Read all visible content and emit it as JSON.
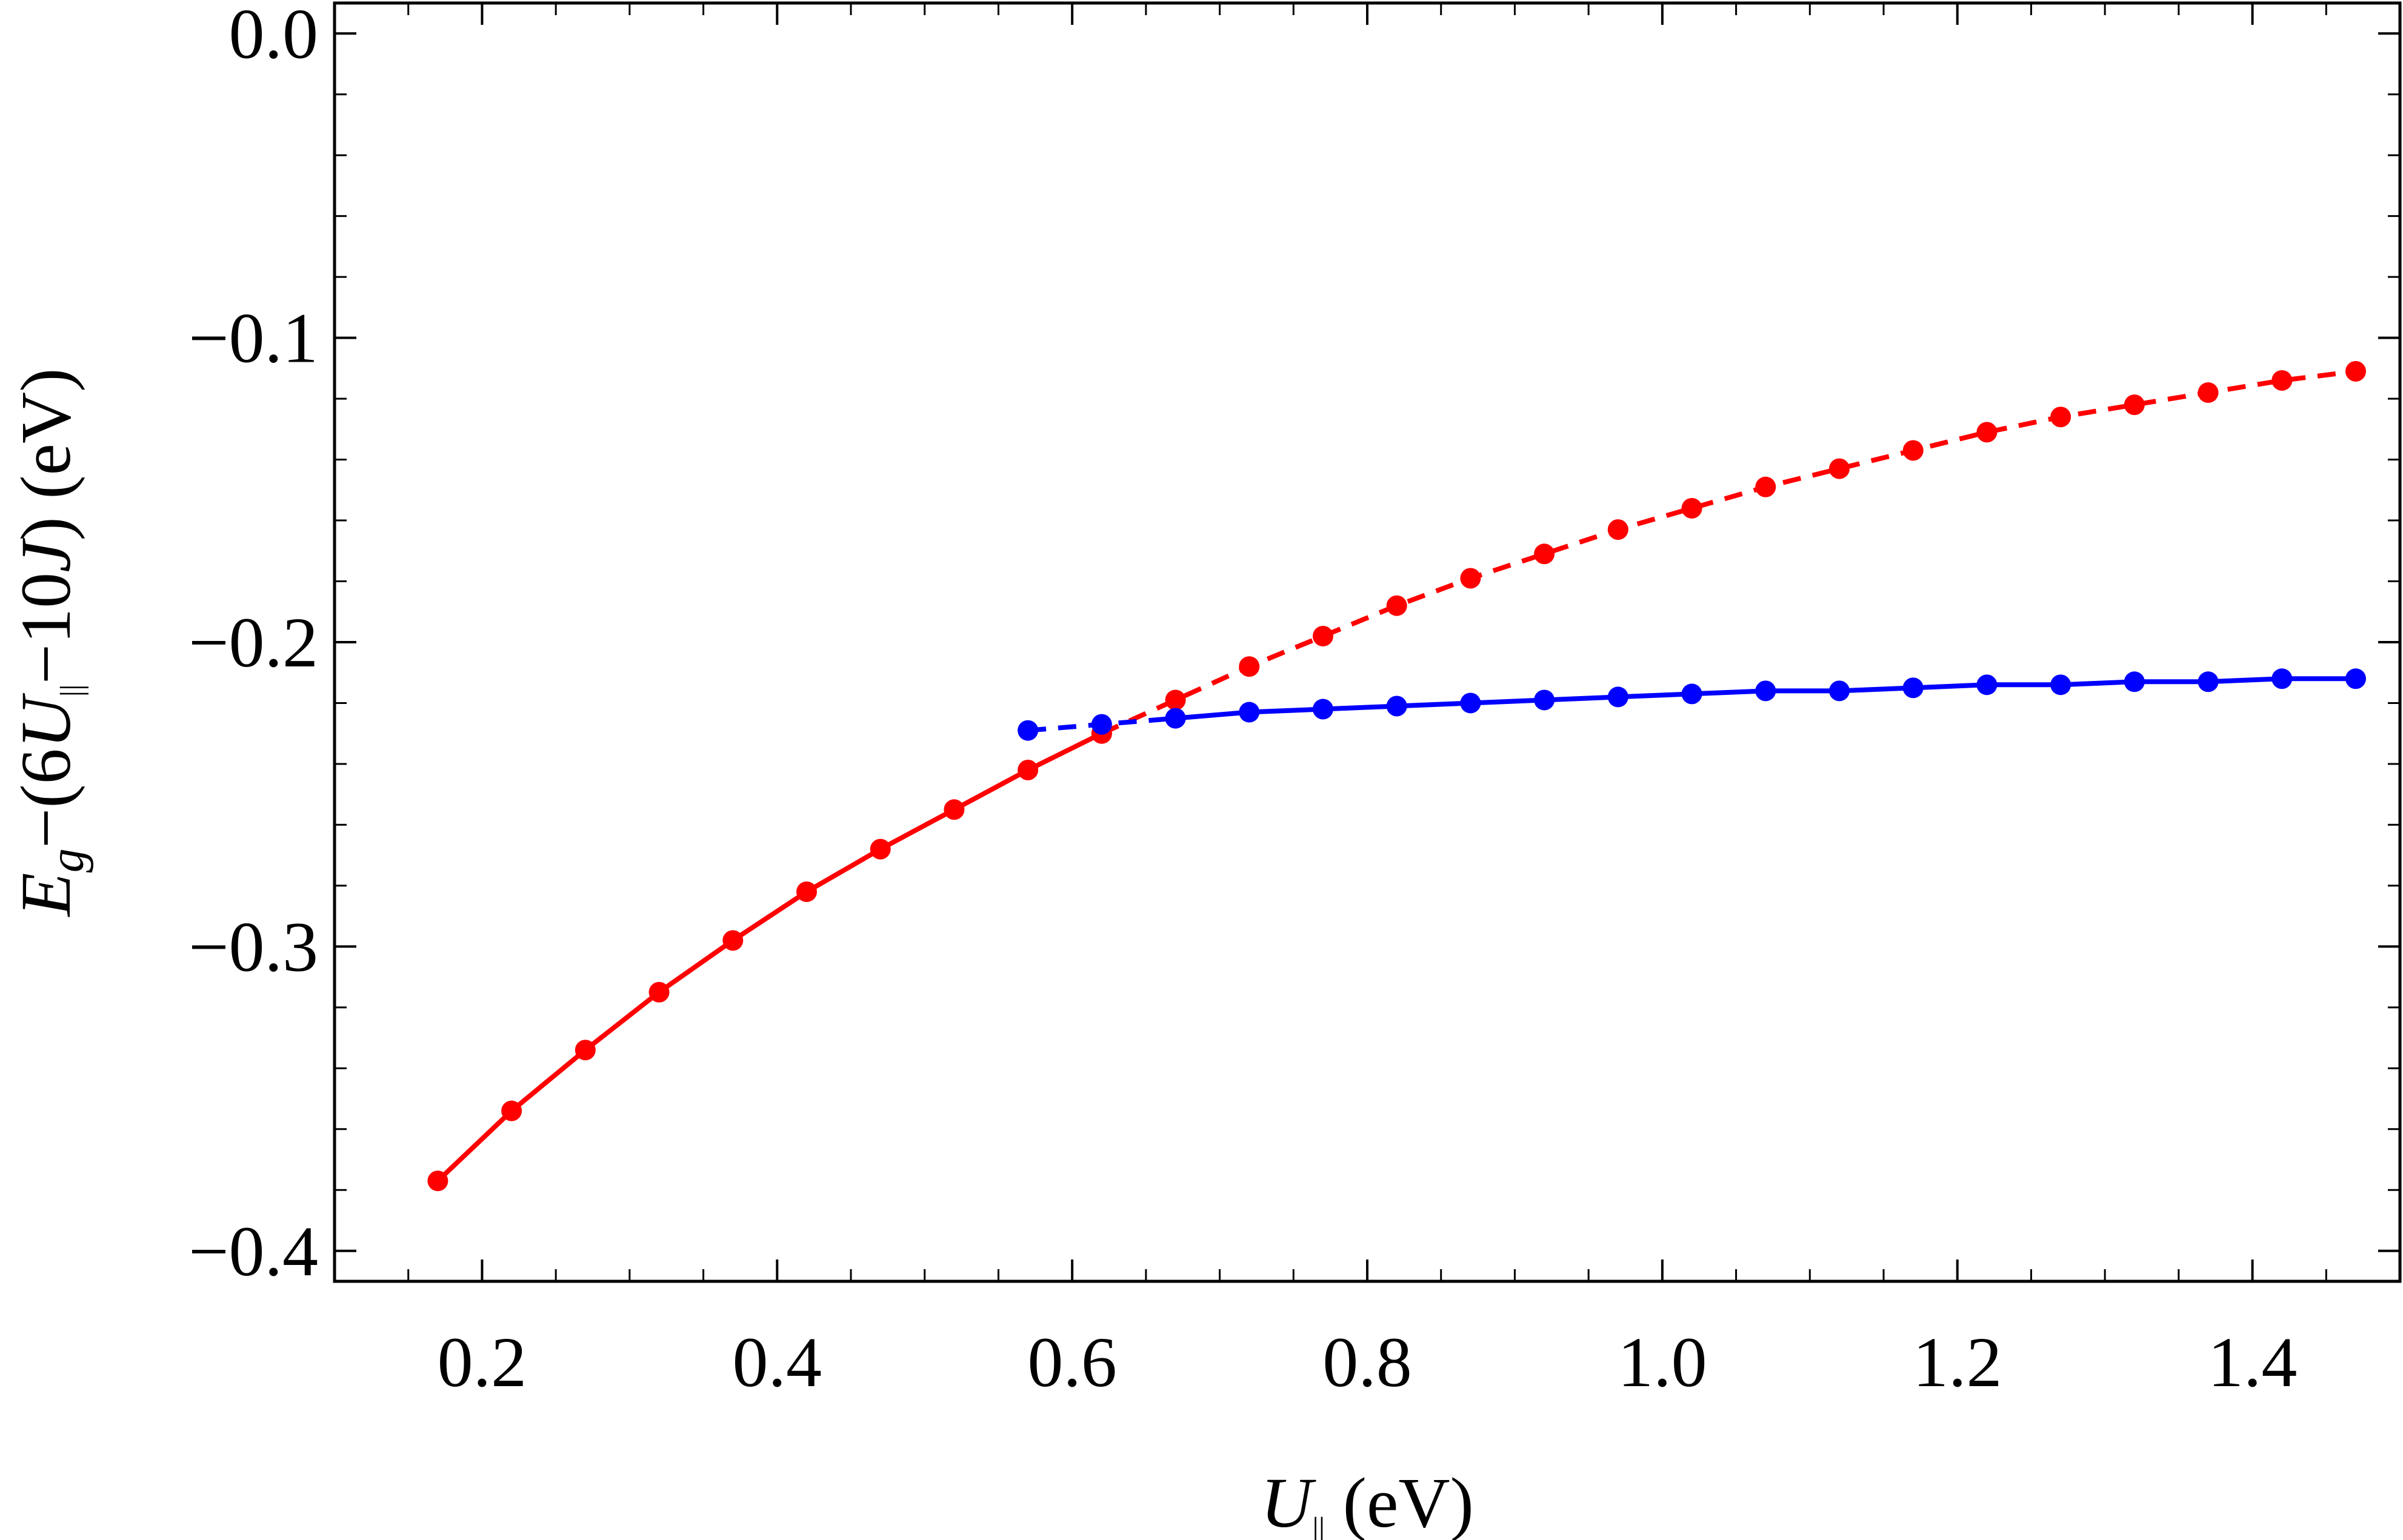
{
  "chart_data": {
    "type": "line",
    "xlabel": "U|| (eV)",
    "ylabel": "Eg−(6U||−10J) (eV)",
    "xlim": [
      0.1,
      1.5
    ],
    "ylim": [
      -0.41,
      0.01
    ],
    "x_ticks": [
      {
        "value": 0.2,
        "label": "0.2"
      },
      {
        "value": 0.4,
        "label": "0.4"
      },
      {
        "value": 0.6,
        "label": "0.6"
      },
      {
        "value": 0.8,
        "label": "0.8"
      },
      {
        "value": 1.0,
        "label": "1.0"
      },
      {
        "value": 1.2,
        "label": "1.2"
      },
      {
        "value": 1.4,
        "label": "1.4"
      }
    ],
    "y_ticks": [
      {
        "value": 0.0,
        "label": "0.0"
      },
      {
        "value": -0.1,
        "label": "−0.1"
      },
      {
        "value": -0.2,
        "label": "−0.2"
      },
      {
        "value": -0.3,
        "label": "−0.3"
      },
      {
        "value": -0.4,
        "label": "−0.4"
      }
    ],
    "grid": false,
    "series": [
      {
        "color": "#ff0000",
        "style": "solid",
        "x": [
          0.17,
          0.22,
          0.27,
          0.32,
          0.37,
          0.42,
          0.47,
          0.52,
          0.57,
          0.62
        ],
        "y": [
          -0.377,
          -0.354,
          -0.334,
          -0.315,
          -0.298,
          -0.282,
          -0.268,
          -0.255,
          -0.242,
          -0.23
        ]
      },
      {
        "color": "#ff0000",
        "style": "dashed",
        "x": [
          0.62,
          0.67,
          0.72,
          0.77,
          0.82,
          0.87,
          0.92,
          0.97,
          1.02,
          1.07,
          1.12,
          1.17,
          1.22,
          1.27,
          1.32,
          1.37,
          1.42,
          1.47
        ],
        "y": [
          -0.23,
          -0.219,
          -0.208,
          -0.198,
          -0.188,
          -0.179,
          -0.171,
          -0.163,
          -0.156,
          -0.149,
          -0.143,
          -0.137,
          -0.131,
          -0.126,
          -0.122,
          -0.118,
          -0.114,
          -0.111
        ]
      },
      {
        "color": "#0000ff",
        "style": "dashed",
        "x": [
          0.57,
          0.62,
          0.67
        ],
        "y": [
          -0.229,
          -0.227,
          -0.225
        ]
      },
      {
        "color": "#0000ff",
        "style": "solid",
        "x": [
          0.67,
          0.72,
          0.77,
          0.82,
          0.87,
          0.92,
          0.97,
          1.02,
          1.07,
          1.12,
          1.17,
          1.22,
          1.27,
          1.32,
          1.37,
          1.42,
          1.47
        ],
        "y": [
          -0.225,
          -0.223,
          -0.222,
          -0.221,
          -0.22,
          -0.219,
          -0.218,
          -0.217,
          -0.216,
          -0.216,
          -0.215,
          -0.214,
          -0.214,
          -0.213,
          -0.213,
          -0.212,
          -0.212
        ]
      }
    ]
  }
}
